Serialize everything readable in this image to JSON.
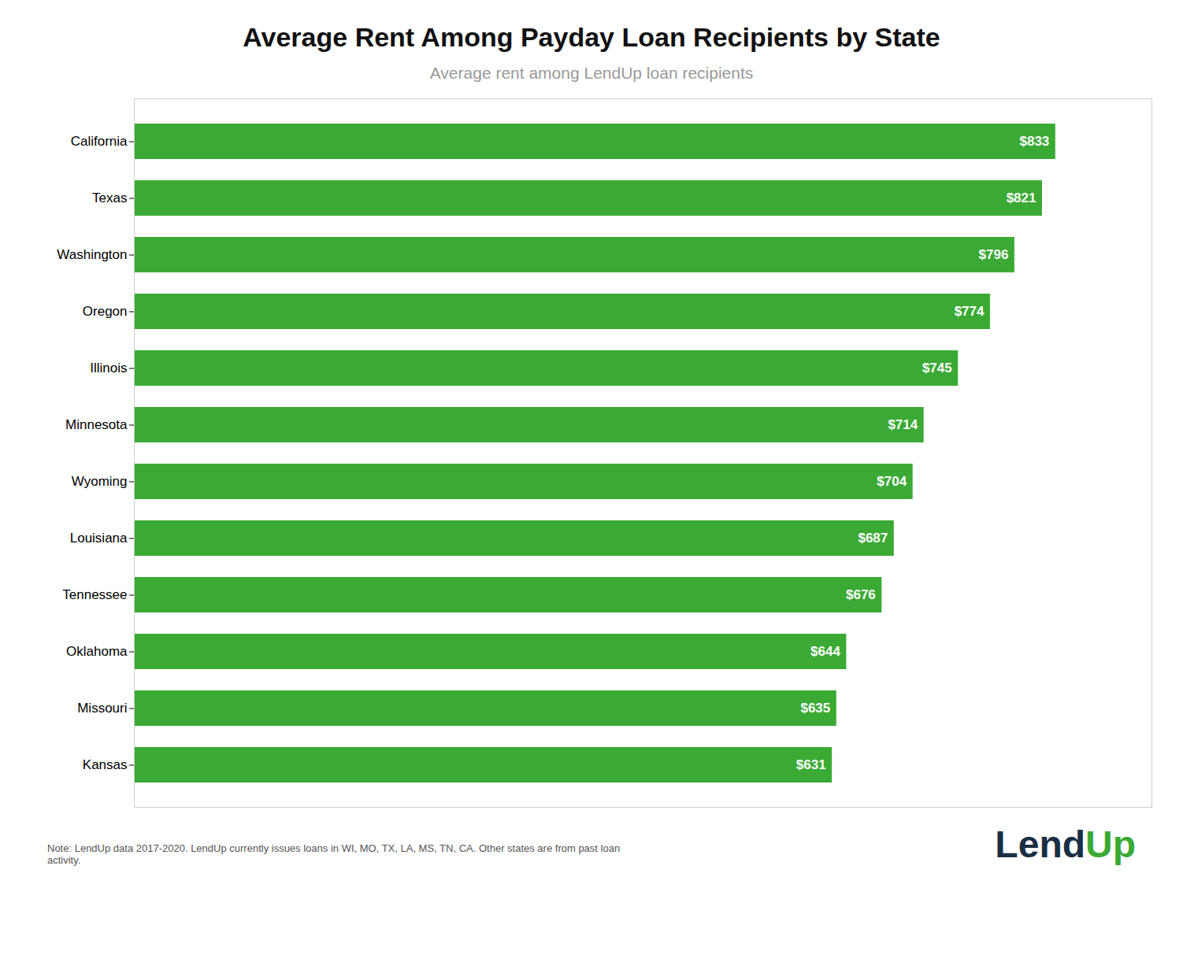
{
  "chart_data": {
    "type": "bar",
    "orientation": "horizontal",
    "title": "Average Rent Among Payday Loan Recipients by State",
    "subtitle": "Average rent among LendUp loan recipients",
    "categories": [
      "California",
      "Texas",
      "Washington",
      "Oregon",
      "Illinois",
      "Minnesota",
      "Wyoming",
      "Louisiana",
      "Tennessee",
      "Oklahoma",
      "Missouri",
      "Kansas"
    ],
    "values": [
      833,
      821,
      796,
      774,
      745,
      714,
      704,
      687,
      676,
      644,
      635,
      631
    ],
    "value_labels": [
      "$833",
      "$821",
      "$796",
      "$774",
      "$745",
      "$714",
      "$704",
      "$687",
      "$676",
      "$644",
      "$635",
      "$631"
    ],
    "data_labels": true,
    "color": "#3aaa35",
    "xlim": [
      0,
      920
    ],
    "tick_labels": "y",
    "grid": false,
    "annotations": [
      {
        "text": "Note: LendUp data 2017-2020. LendUp currently issues loans in WI, MO, TX, LA, MS, TN, CA. Other states are from past loan\nactivity."
      },
      {
        "text": "Lend",
        "color": "#1a2e44"
      },
      {
        "text": "Up",
        "color": "#3aaa35"
      }
    ]
  }
}
